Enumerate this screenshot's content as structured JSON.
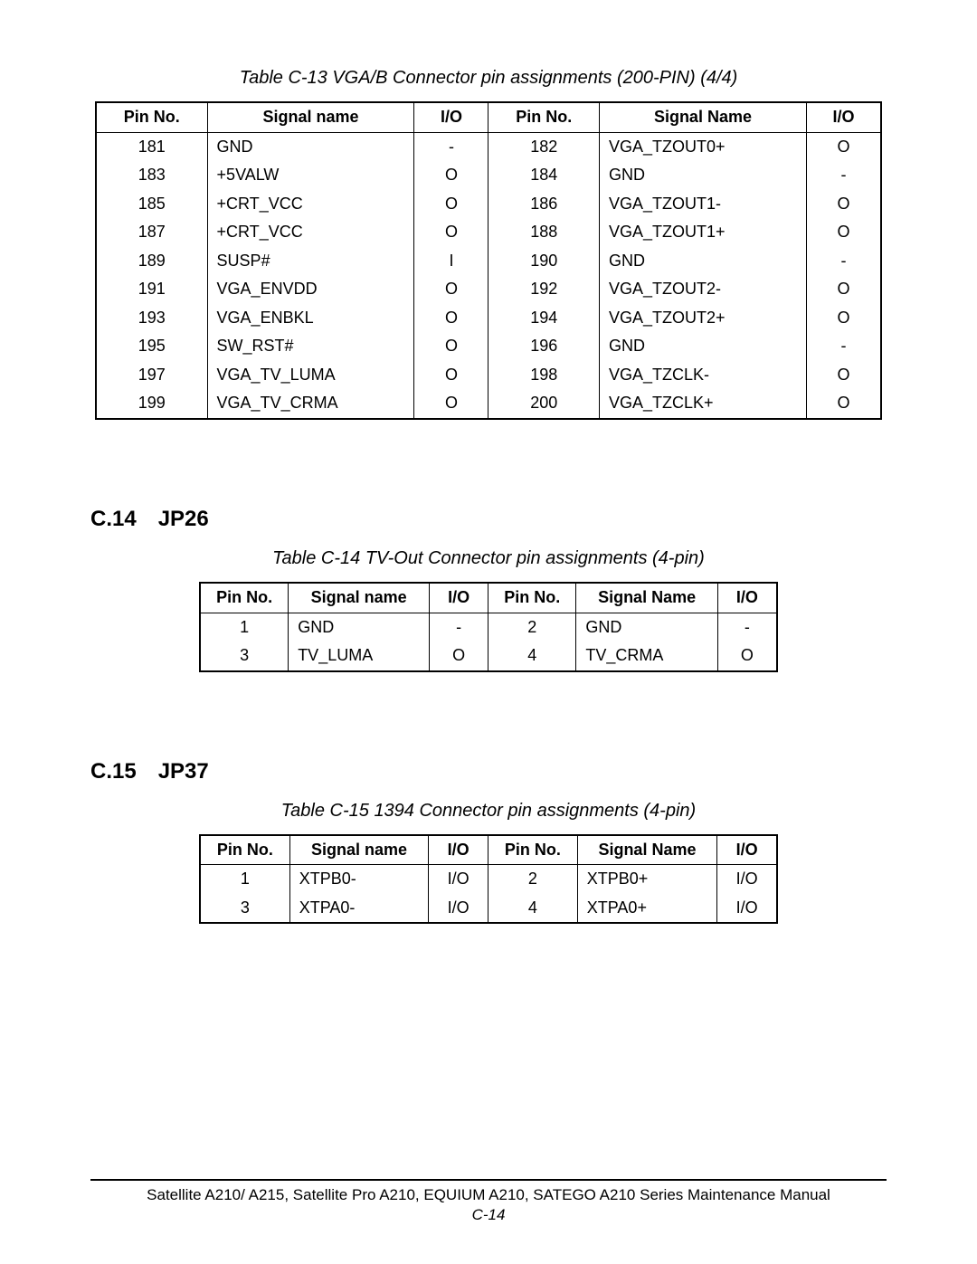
{
  "page": {
    "footer_line1": "Satellite A210/ A215, Satellite Pro A210, EQUIUM A210, SATEGO A210 Series Maintenance Manual",
    "footer_line2": "C-14"
  },
  "table1": {
    "caption": "Table C-13 VGA/B Connector pin assignments (200-PIN) (4/4)",
    "headers": [
      "Pin No.",
      "Signal name",
      "I/O",
      "Pin No.",
      "Signal Name",
      "I/O"
    ],
    "rows": [
      [
        "181",
        "GND",
        "-",
        "182",
        "VGA_TZOUT0+",
        "O"
      ],
      [
        "183",
        "+5VALW",
        "O",
        "184",
        "GND",
        "-"
      ],
      [
        "185",
        "+CRT_VCC",
        "O",
        "186",
        "VGA_TZOUT1-",
        "O"
      ],
      [
        "187",
        "+CRT_VCC",
        "O",
        "188",
        "VGA_TZOUT1+",
        "O"
      ],
      [
        "189",
        "SUSP#",
        "I",
        "190",
        "GND",
        "-"
      ],
      [
        "191",
        "VGA_ENVDD",
        "O",
        "192",
        "VGA_TZOUT2-",
        "O"
      ],
      [
        "193",
        "VGA_ENBKL",
        "O",
        "194",
        "VGA_TZOUT2+",
        "O"
      ],
      [
        "195",
        "SW_RST#",
        "O",
        "196",
        "GND",
        "-"
      ],
      [
        "197",
        "VGA_TV_LUMA",
        "O",
        "198",
        "VGA_TZCLK-",
        "O"
      ],
      [
        "199",
        "VGA_TV_CRMA",
        "O",
        "200",
        "VGA_TZCLK+",
        "O"
      ]
    ]
  },
  "section2": {
    "heading": "C.14 JP26"
  },
  "table2": {
    "caption": "Table C-14 TV-Out Connector pin assignments (4-pin)",
    "headers": [
      "Pin No.",
      "Signal name",
      "I/O",
      "Pin No.",
      "Signal Name",
      "I/O"
    ],
    "rows": [
      [
        "1",
        "GND",
        "-",
        "2",
        "GND",
        "-"
      ],
      [
        "3",
        "TV_LUMA",
        "O",
        "4",
        "TV_CRMA",
        "O"
      ]
    ]
  },
  "section3": {
    "heading": "C.15 JP37"
  },
  "table3": {
    "caption": "Table C-15 1394 Connector pin assignments (4-pin)",
    "headers": [
      "Pin No.",
      "Signal name",
      "I/O",
      "Pin No.",
      "Signal Name",
      "I/O"
    ],
    "rows": [
      [
        "1",
        "XTPB0-",
        "I/O",
        "2",
        "XTPB0+",
        "I/O"
      ],
      [
        "3",
        "XTPA0-",
        "I/O",
        "4",
        "XTPA0+",
        "I/O"
      ]
    ]
  }
}
